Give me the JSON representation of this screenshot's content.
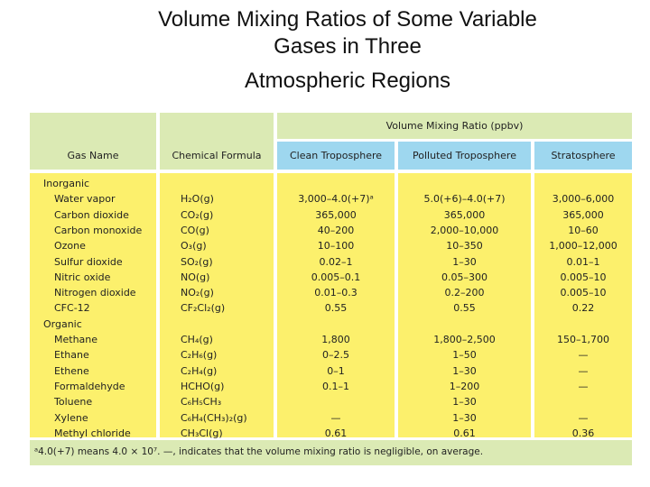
{
  "title": [
    "Volume Mixing Ratios of Some Variable",
    "Gases in Three",
    "Atmospheric Regions"
  ],
  "table": {
    "group_header": "Volume Mixing Ratio (ppbv)",
    "columns": [
      "Gas Name",
      "Chemical Formula",
      "Clean Troposphere",
      "Polluted Troposphere",
      "Stratosphere"
    ],
    "sections": [
      {
        "label": "Inorganic",
        "rows": [
          [
            "Water vapor",
            "H₂O(g)",
            "3,000–4.0(+7)ᵃ",
            "5.0(+6)–4.0(+7)",
            "3,000–6,000"
          ],
          [
            "Carbon dioxide",
            "CO₂(g)",
            "365,000",
            "365,000",
            "365,000"
          ],
          [
            "Carbon monoxide",
            "CO(g)",
            "40–200",
            "2,000–10,000",
            "10–60"
          ],
          [
            "Ozone",
            "O₃(g)",
            "10–100",
            "10–350",
            "1,000–12,000"
          ],
          [
            "Sulfur dioxide",
            "SO₂(g)",
            "0.02–1",
            "1–30",
            "0.01–1"
          ],
          [
            "Nitric oxide",
            "NO(g)",
            "0.005–0.1",
            "0.05–300",
            "0.005–10"
          ],
          [
            "Nitrogen dioxide",
            "NO₂(g)",
            "0.01–0.3",
            "0.2–200",
            "0.005–10"
          ],
          [
            "CFC-12",
            "CF₂Cl₂(g)",
            "0.55",
            "0.55",
            "0.22"
          ]
        ]
      },
      {
        "label": "Organic",
        "rows": [
          [
            "Methane",
            "CH₄(g)",
            "1,800",
            "1,800–2,500",
            "150–1,700"
          ],
          [
            "Ethane",
            "C₂H₆(g)",
            "0–2.5",
            "1–50",
            "—"
          ],
          [
            "Ethene",
            "C₂H₄(g)",
            "0–1",
            "1–30",
            "—"
          ],
          [
            "Formaldehyde",
            "HCHO(g)",
            "0.1–1",
            "1–200",
            "—"
          ],
          [
            "Toluene",
            "C₆H₅CH₃",
            null,
            "1–30",
            null
          ],
          [
            "Xylene",
            "C₆H₄(CH₃)₂(g)",
            "—",
            "1–30",
            "—"
          ],
          [
            "Methyl chloride",
            "CH₃Cl(g)",
            "0.61",
            "0.61",
            "0.36"
          ]
        ]
      }
    ],
    "footnote": "ᵃ4.0(+7) means 4.0 × 10⁷. —, indicates that the volume mixing ratio is negligible, on average."
  }
}
